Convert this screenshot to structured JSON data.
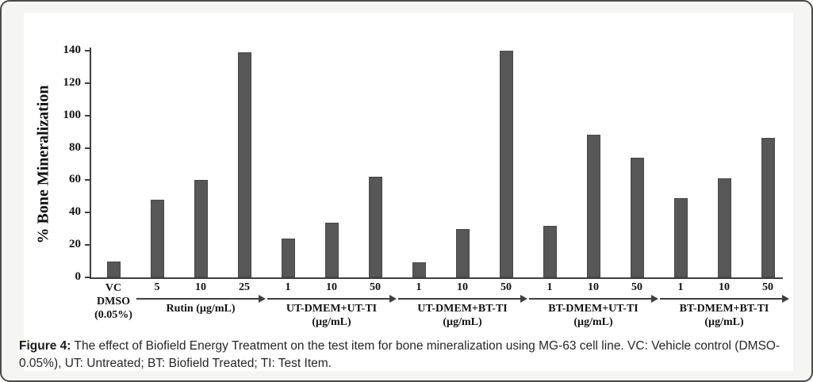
{
  "figure": {
    "caption_label": "Figure 4:",
    "caption_text": " The effect of Biofield Energy Treatment on the test item for bone mineralization using MG-63 cell line. VC: Vehicle control (DMSO-0.05%), UT: Untreated; BT: Biofield Treated; TI: Test Item."
  },
  "chart_data": {
    "type": "bar",
    "title": "",
    "xlabel": "",
    "ylabel": "% Bone Mineralization",
    "ylim": [
      0,
      140
    ],
    "yticks": [
      0,
      20,
      40,
      60,
      80,
      100,
      120,
      140
    ],
    "grid": false,
    "legend": "none",
    "bar_color": "#575757",
    "groups": [
      {
        "label_lines": [
          "VC",
          "DMSO",
          "(0.05%)"
        ],
        "arrow": false,
        "bars": [
          {
            "tick": "",
            "value": 10
          }
        ]
      },
      {
        "label_lines": [
          "Rutin (µg/mL)"
        ],
        "arrow": true,
        "bars": [
          {
            "tick": "5",
            "value": 48
          },
          {
            "tick": "10",
            "value": 60
          },
          {
            "tick": "25",
            "value": 139
          }
        ]
      },
      {
        "label_lines": [
          "UT-DMEM+UT-TI",
          "(µg/mL)"
        ],
        "arrow": true,
        "bars": [
          {
            "tick": "1",
            "value": 24
          },
          {
            "tick": "10",
            "value": 34
          },
          {
            "tick": "50",
            "value": 62
          }
        ]
      },
      {
        "label_lines": [
          "UT-DMEM+BT-TI",
          "(µg/mL)"
        ],
        "arrow": true,
        "bars": [
          {
            "tick": "1",
            "value": 9.5
          },
          {
            "tick": "10",
            "value": 30
          },
          {
            "tick": "50",
            "value": 140
          }
        ]
      },
      {
        "label_lines": [
          "BT-DMEM+UT-TI",
          "(µg/mL)"
        ],
        "arrow": true,
        "bars": [
          {
            "tick": "1",
            "value": 32
          },
          {
            "tick": "10",
            "value": 88
          },
          {
            "tick": "50",
            "value": 74
          }
        ]
      },
      {
        "label_lines": [
          "BT-DMEM+BT-TI",
          "(µg/mL)"
        ],
        "arrow": true,
        "bars": [
          {
            "tick": "1",
            "value": 49
          },
          {
            "tick": "10",
            "value": 61
          },
          {
            "tick": "50",
            "value": 86
          }
        ]
      }
    ]
  }
}
